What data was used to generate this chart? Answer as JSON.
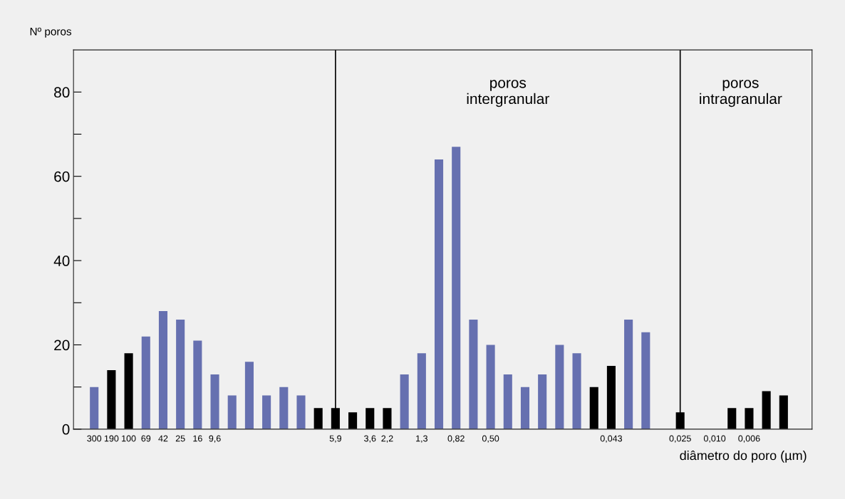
{
  "chart_data": {
    "type": "bar",
    "ylabel": "Nº poros",
    "xlabel": "diâmetro do poro (µm)",
    "categories": [
      "300",
      "190",
      "100",
      "69",
      "42",
      "25",
      "16",
      "9,6",
      null,
      null,
      null,
      null,
      null,
      null,
      "5,9",
      null,
      "3,6",
      "2,2",
      null,
      "1,3",
      null,
      "0,82",
      null,
      "0,50",
      null,
      null,
      null,
      null,
      null,
      null,
      "0,043",
      null,
      null,
      null,
      "0,025",
      null,
      "0,010",
      null,
      "0,006",
      null,
      null
    ],
    "values": [
      10,
      14,
      18,
      22,
      28,
      26,
      21,
      13,
      8,
      16,
      8,
      10,
      8,
      5,
      5,
      4,
      5,
      5,
      13,
      18,
      64,
      67,
      26,
      20,
      13,
      10,
      13,
      20,
      18,
      10,
      15,
      26,
      23,
      null,
      4,
      null,
      null,
      5,
      5,
      9,
      8
    ],
    "colors": [
      "#6670b0",
      "#000000",
      "#000000",
      "#6670b0",
      "#6670b0",
      "#6670b0",
      "#6670b0",
      "#6670b0",
      "#6670b0",
      "#6670b0",
      "#6670b0",
      "#6670b0",
      "#6670b0",
      "#000000",
      "#000000",
      "#000000",
      "#000000",
      "#000000",
      "#6670b0",
      "#6670b0",
      "#6670b0",
      "#6670b0",
      "#6670b0",
      "#6670b0",
      "#6670b0",
      "#6670b0",
      "#6670b0",
      "#6670b0",
      "#6670b0",
      "#000000",
      "#000000",
      "#6670b0",
      "#6670b0",
      null,
      "#000000",
      null,
      null,
      "#000000",
      "#000000",
      "#000000",
      "#000000"
    ],
    "ylim": [
      0,
      90
    ],
    "yticks": [
      0,
      {
        "value": 10,
        "label": null
      },
      20,
      {
        "value": 30,
        "label": null
      },
      40,
      {
        "value": 50,
        "label": null
      },
      60,
      {
        "value": 70,
        "label": null
      },
      80
    ],
    "ref_lines": [
      {
        "axis": "x",
        "value": "5,9",
        "color": "#000000"
      },
      {
        "axis": "x",
        "value": "0,025",
        "color": "#000000"
      }
    ],
    "annotations": [
      "poros\nintergranular",
      "poros\nintragranular"
    ],
    "grid": false
  }
}
